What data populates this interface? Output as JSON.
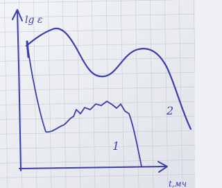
{
  "axis_labels": {
    "y": "lg ε",
    "x": "t,мч"
  },
  "curve_labels": [
    "1",
    "2"
  ]
}
